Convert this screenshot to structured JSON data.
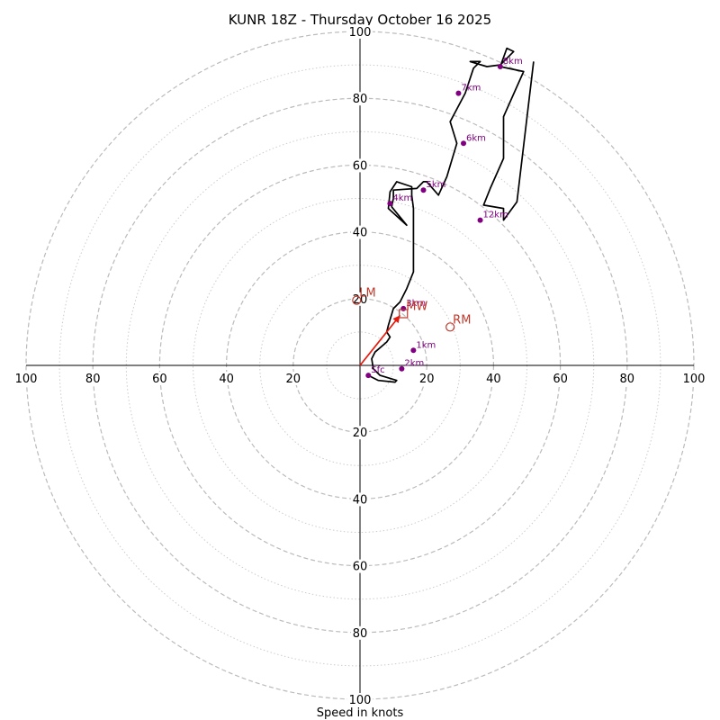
{
  "chart_data": {
    "type": "hodograph",
    "title": "KUNR 18Z - Thursday October 16 2025",
    "xlabel": "Speed in knots",
    "unit": "knots",
    "max_ring": 100,
    "ring_step": 10,
    "labeled_rings": [
      20,
      40,
      60,
      80,
      100
    ],
    "tick_labels": [
      "20",
      "40",
      "60",
      "80",
      "100"
    ],
    "colors": {
      "hodograph_line": "#000000",
      "height_marker": "#800080",
      "motion": "#c0392b",
      "shear_vector": "#e6190d",
      "ring_major": "#bbbbbb",
      "ring_minor": "#cccccc"
    },
    "hodograph": {
      "u": [
        2.5,
        5.5,
        10.5,
        11,
        6,
        4,
        3.5,
        4.5,
        8,
        9,
        8,
        8.5,
        10,
        12,
        14,
        16,
        16,
        16,
        15.5,
        15.5,
        11,
        9,
        8.5,
        14,
        9.5,
        10,
        10,
        17,
        19,
        20,
        23.5,
        26,
        29,
        27,
        31.5,
        34,
        36,
        33,
        38,
        42,
        46,
        44,
        42,
        49,
        43,
        43,
        39,
        37,
        43,
        43,
        47,
        52
      ],
      "v": [
        -3,
        -4.5,
        -5,
        -4.5,
        -3,
        -1,
        2,
        4,
        7,
        8.5,
        10,
        12,
        17,
        19,
        23,
        28,
        44.5,
        47,
        51,
        53.5,
        55,
        52,
        47,
        42,
        47.5,
        50,
        52.5,
        53,
        55,
        55,
        51,
        56.5,
        66.5,
        73,
        81.5,
        89,
        91,
        91,
        89.5,
        90,
        94,
        95,
        89.5,
        88,
        74.5,
        62,
        53,
        48,
        47,
        43.5,
        49,
        91
      ]
    },
    "height_markers": [
      {
        "label": "Sfc",
        "u": 2.5,
        "v": -3
      },
      {
        "label": "1km",
        "u": 16,
        "v": 4.5
      },
      {
        "label": "2km",
        "u": 12.5,
        "v": -1
      },
      {
        "label": "3km",
        "u": 13,
        "v": 17
      },
      {
        "label": "4km",
        "u": 9,
        "v": 48.5
      },
      {
        "label": "5km",
        "u": 19,
        "v": 52.5
      },
      {
        "label": "6km",
        "u": 31,
        "v": 66.5
      },
      {
        "label": "7km",
        "u": 29.5,
        "v": 81.5
      },
      {
        "label": "8km",
        "u": 42,
        "v": 89.5
      },
      {
        "label": "12km",
        "u": 36,
        "v": 43.5
      }
    ],
    "storm_motions": [
      {
        "label": "LM",
        "u": -1,
        "v": 19.5,
        "marker": "circle"
      },
      {
        "label": "MW",
        "u": 13,
        "v": 15.5,
        "marker": "square"
      },
      {
        "label": "RM",
        "u": 27,
        "v": 11.5,
        "marker": "circle"
      }
    ],
    "shear_vector": {
      "from": [
        0,
        0
      ],
      "to": [
        12,
        15
      ]
    }
  }
}
